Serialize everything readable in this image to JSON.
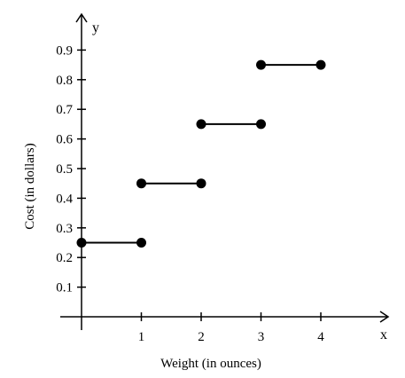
{
  "chart_data": {
    "type": "line",
    "title": "",
    "xlabel": "Weight (in ounces)",
    "ylabel": "Cost (in dollars)",
    "x_axis_letter": "x",
    "y_axis_letter": "y",
    "xlim": [
      0,
      4.9
    ],
    "ylim": [
      0,
      0.99
    ],
    "x_ticks": [
      1,
      2,
      3,
      4
    ],
    "x_tick_labels": [
      "1",
      "2",
      "3",
      "4"
    ],
    "y_ticks": [
      0.1,
      0.2,
      0.3,
      0.4,
      0.5,
      0.6,
      0.7,
      0.8,
      0.9
    ],
    "y_tick_labels": [
      "0.1",
      "0.2",
      "0.3",
      "0.4",
      "0.5",
      "0.6",
      "0.7",
      "0.8",
      "0.9"
    ],
    "grid": false,
    "legend": false,
    "color": "#000000",
    "series": [
      {
        "segments": [
          {
            "x": [
              0,
              1
            ],
            "y": [
              0.25,
              0.25
            ]
          },
          {
            "x": [
              1,
              2
            ],
            "y": [
              0.45,
              0.45
            ]
          },
          {
            "x": [
              2,
              3
            ],
            "y": [
              0.65,
              0.65
            ]
          },
          {
            "x": [
              3,
              4
            ],
            "y": [
              0.85,
              0.85
            ]
          }
        ]
      }
    ]
  }
}
